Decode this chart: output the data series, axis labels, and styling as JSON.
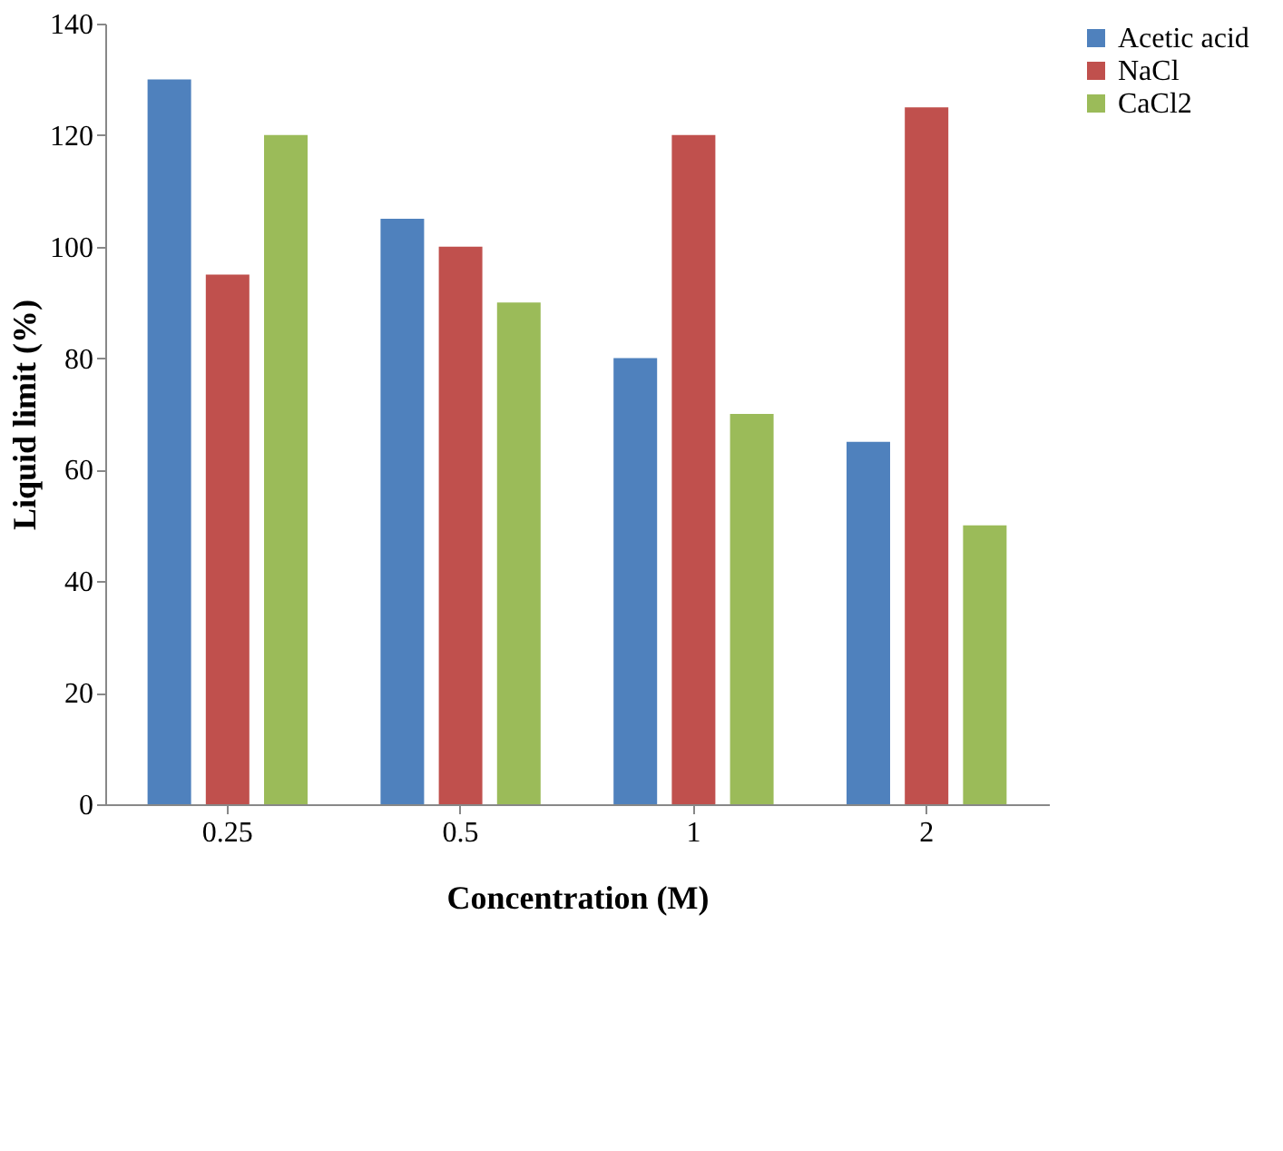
{
  "chart_data": {
    "type": "bar",
    "xlabel": "Concentration (M)",
    "ylabel": "Liquid limit (%)",
    "categories": [
      "0.25",
      "0.5",
      "1",
      "2"
    ],
    "series": [
      {
        "name": "Acetic acid",
        "color": "#4f81bd",
        "values": [
          130,
          105,
          80,
          65
        ]
      },
      {
        "name": "NaCl",
        "color": "#c0504d",
        "values": [
          95,
          100,
          120,
          125
        ]
      },
      {
        "name": "CaCl2",
        "color": "#9bbb59",
        "values": [
          120,
          90,
          70,
          50
        ]
      }
    ],
    "ylim": [
      0,
      140
    ],
    "yticks": [
      0,
      20,
      40,
      60,
      80,
      100,
      120,
      140
    ],
    "grid": false,
    "legend": "right"
  }
}
